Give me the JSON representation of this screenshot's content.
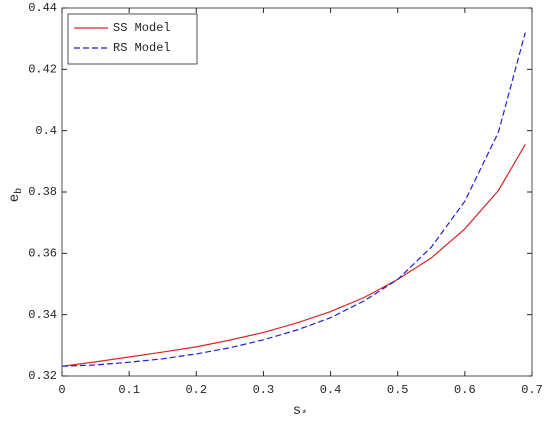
{
  "chart_data": {
    "type": "line",
    "x_label": {
      "base": "s",
      "sub": "*"
    },
    "y_label": {
      "base": "e",
      "sub": "b"
    },
    "x": [
      0,
      0.05,
      0.1,
      0.15,
      0.2,
      0.25,
      0.3,
      0.35,
      0.4,
      0.45,
      0.5,
      0.55,
      0.6,
      0.65,
      0.69
    ],
    "series": [
      {
        "name": "SS Model",
        "color": "#d62728",
        "dash": "solid",
        "values": [
          0.3232,
          0.3246,
          0.3262,
          0.3278,
          0.3295,
          0.3317,
          0.3342,
          0.3373,
          0.341,
          0.3456,
          0.3515,
          0.3585,
          0.368,
          0.3805,
          0.3955
        ]
      },
      {
        "name": "RS Model",
        "color": "#1f1fd6",
        "dash": "dashed",
        "values": [
          0.3232,
          0.3236,
          0.3245,
          0.3256,
          0.3272,
          0.3292,
          0.3318,
          0.335,
          0.339,
          0.3445,
          0.3515,
          0.362,
          0.377,
          0.3995,
          0.432
        ]
      }
    ],
    "xlim": [
      0,
      0.7
    ],
    "xticks": [
      0,
      0.1,
      0.2,
      0.3,
      0.4,
      0.5,
      0.6,
      0.7
    ],
    "ylim": [
      0.32,
      0.44
    ],
    "yticks": [
      0.32,
      0.34,
      0.36,
      0.38,
      0.4,
      0.42,
      0.44
    ],
    "grid": false,
    "legend": "upper left"
  }
}
